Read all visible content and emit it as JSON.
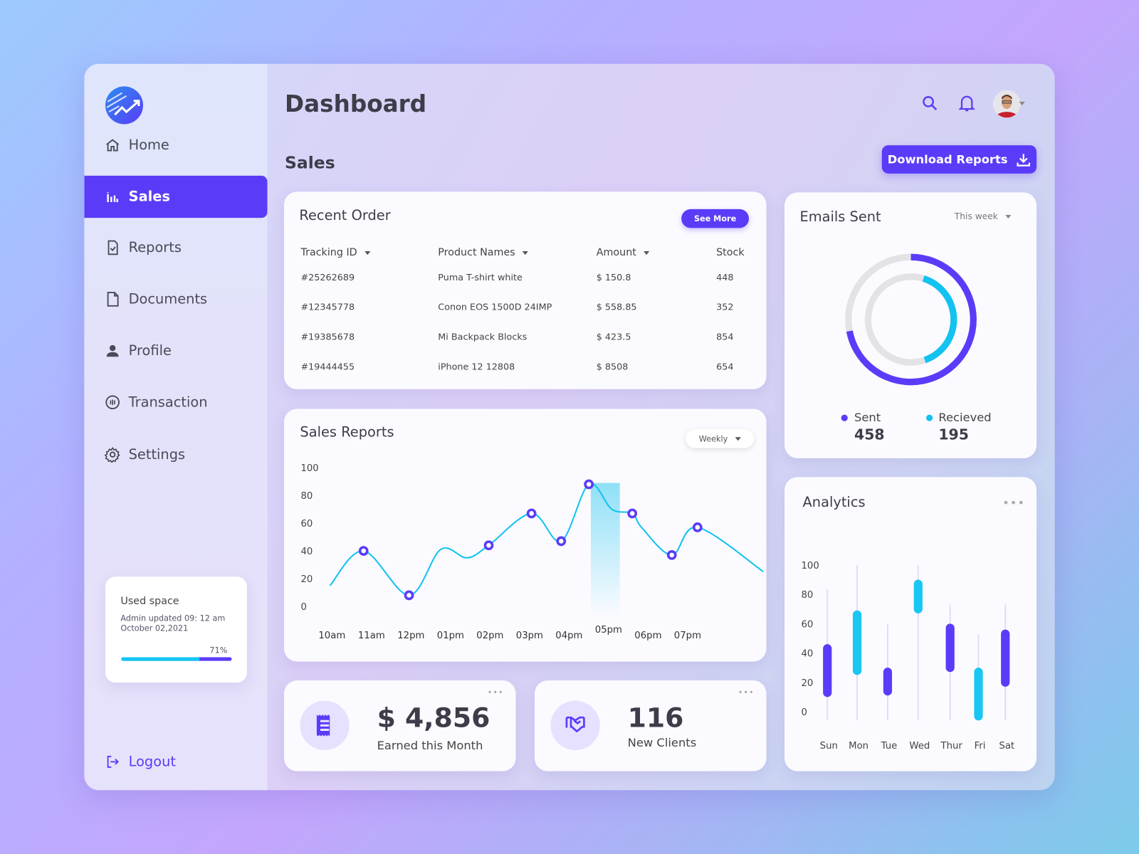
{
  "colors": {
    "accent": "#5a3cf8",
    "cyan": "#12c2f0",
    "track": "#e3e3e6"
  },
  "header": {
    "title": "Dashboard",
    "section": "Sales",
    "download_label": "Download Reports"
  },
  "sidebar": {
    "items": [
      {
        "label": "Home",
        "icon": "home-icon"
      },
      {
        "label": "Sales",
        "icon": "bar-chart-icon",
        "active": true
      },
      {
        "label": "Reports",
        "icon": "report-icon"
      },
      {
        "label": "Documents",
        "icon": "document-icon"
      },
      {
        "label": "Profile",
        "icon": "user-icon"
      },
      {
        "label": "Transaction",
        "icon": "transaction-icon"
      },
      {
        "label": "Settings",
        "icon": "gear-icon"
      }
    ],
    "used_space": {
      "title": "Used space",
      "line1": "Admin updated 09: 12 am",
      "line2": "October 02,2021",
      "percent_label": "71%",
      "percent": 71
    },
    "logout": "Logout"
  },
  "recent_order": {
    "title": "Recent Order",
    "see_more": "See More",
    "columns": [
      "Tracking ID",
      "Product Names",
      "Amount",
      "Stock"
    ],
    "rows": [
      [
        "#25262689",
        "Puma T-shirt white",
        "$ 150.8",
        "448"
      ],
      [
        "#12345778",
        "Conon EOS 1500D 24IMP",
        "$ 558.85",
        "352"
      ],
      [
        "#19385678",
        "Mi Backpack Blocks",
        "$ 423.5",
        "854"
      ],
      [
        "#19444455",
        "iPhone 12 12808",
        "$ 8508",
        "654"
      ]
    ]
  },
  "emails": {
    "title": "Emails Sent",
    "period": "This week",
    "sent_label": "Sent",
    "sent": "458",
    "received_label": "Recieved",
    "received": "195",
    "sent_fraction": 0.72,
    "received_fraction": 0.4
  },
  "stats": [
    {
      "value": "$ 4,856",
      "label": "Earned this Month",
      "icon": "receipt-icon"
    },
    {
      "value": "116",
      "label": "New Clients",
      "icon": "handshake-icon"
    }
  ],
  "chart_data": [
    {
      "type": "line",
      "title": "Sales Reports",
      "filter": "Weekly",
      "ylim": [
        0,
        100
      ],
      "yticks": [
        "0",
        "20",
        "40",
        "60",
        "80",
        "100"
      ],
      "xticks": [
        "10am",
        "11am",
        "12pm",
        "01pm",
        "02pm",
        "03pm",
        "04pm",
        "05pm",
        "06pm",
        "07pm"
      ],
      "highlight": "05pm",
      "curve": [
        [
          "09:57",
          15
        ],
        [
          "10:48",
          40
        ],
        [
          "11:57",
          8
        ],
        [
          "12:45",
          41
        ],
        [
          "13:25",
          35
        ],
        [
          "13:58",
          44
        ],
        [
          "15:03",
          67
        ],
        [
          "15:48",
          47
        ],
        [
          "16:30",
          88
        ],
        [
          "17:05",
          70
        ],
        [
          "17:36",
          67
        ],
        [
          "17:50",
          57
        ],
        [
          "18:36",
          37
        ],
        [
          "19:15",
          57
        ],
        [
          "20:55",
          25
        ]
      ],
      "markers": [
        [
          "10:48",
          40
        ],
        [
          "11:57",
          8
        ],
        [
          "13:58",
          44
        ],
        [
          "15:03",
          67
        ],
        [
          "15:48",
          47
        ],
        [
          "16:30",
          88
        ],
        [
          "17:36",
          67
        ],
        [
          "18:36",
          37
        ],
        [
          "19:15",
          57
        ]
      ]
    },
    {
      "type": "candlestick",
      "title": "Analytics",
      "ylim": [
        0,
        100
      ],
      "yticks": [
        "0",
        "20",
        "40",
        "60",
        "80",
        "100"
      ],
      "categories": [
        "Sun",
        "Mon",
        "Tue",
        "Wed",
        "Thur",
        "Fri",
        "Sat"
      ],
      "series": [
        {
          "low": -6,
          "high": 83,
          "open": 10,
          "close": 46,
          "color": "purple"
        },
        {
          "low": -6,
          "high": 100,
          "open": 25,
          "close": 69,
          "color": "cyan"
        },
        {
          "low": -6,
          "high": 60,
          "open": 11,
          "close": 30,
          "color": "purple"
        },
        {
          "low": -6,
          "high": 100,
          "open": 67,
          "close": 90,
          "color": "cyan"
        },
        {
          "low": -6,
          "high": 73,
          "open": 27,
          "close": 60,
          "color": "purple"
        },
        {
          "low": -6,
          "high": 53,
          "open": -6,
          "close": 30,
          "color": "cyan"
        },
        {
          "low": -6,
          "high": 73,
          "open": 17,
          "close": 56,
          "color": "purple"
        }
      ]
    }
  ]
}
